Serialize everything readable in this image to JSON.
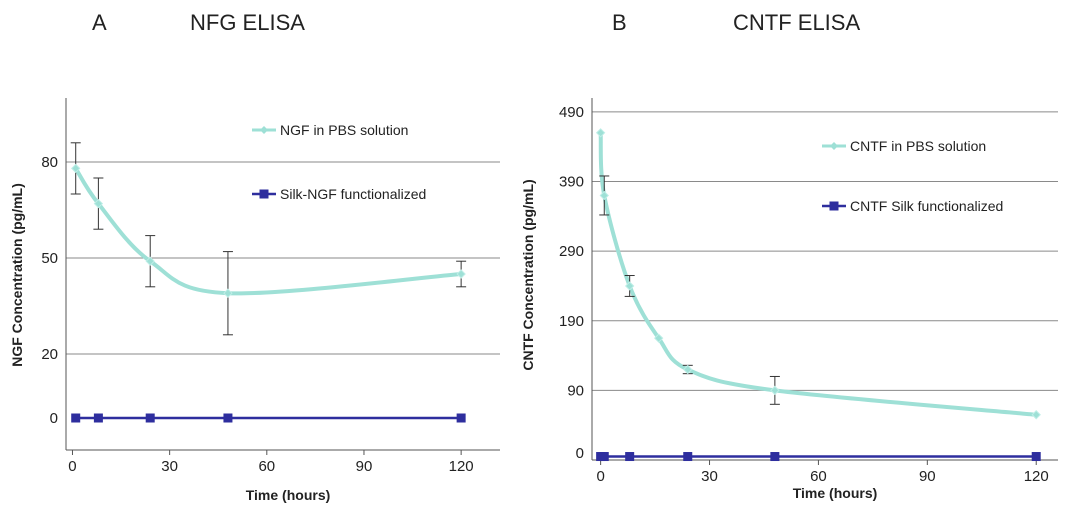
{
  "chart_data": [
    {
      "type": "line",
      "panel_label": "A",
      "title": "NFG  ELISA",
      "xlabel": "Time (hours)",
      "ylabel": "NGF Concentration (pg/mL)",
      "xlim": [
        -2,
        132
      ],
      "ylim": [
        -10,
        100
      ],
      "x_ticks": [
        0,
        30,
        60,
        90,
        120
      ],
      "y_ticks": [
        0,
        20,
        50,
        80
      ],
      "grid": "horizontal",
      "legend_placement": "right",
      "series": [
        {
          "name": "NGF in PBS solution",
          "color": "#9ee0d6",
          "marker": "diamond",
          "x": [
            1,
            8,
            24,
            48,
            120
          ],
          "y": [
            78,
            67,
            49,
            39,
            45
          ],
          "err": [
            8,
            8,
            8,
            13,
            4
          ]
        },
        {
          "name": "Silk-NGF functionalized",
          "color": "#2e2e9e",
          "marker": "square",
          "x": [
            1,
            8,
            24,
            48,
            120
          ],
          "y": [
            0,
            0,
            0,
            0,
            0
          ]
        }
      ]
    },
    {
      "type": "line",
      "panel_label": "B",
      "title": "CNTF ELISA",
      "xlabel": "Time (hours)",
      "ylabel": "CNTF Concentration (pg/mL)",
      "xlim": [
        -1,
        126
      ],
      "ylim": [
        -10,
        510
      ],
      "x_ticks": [
        0,
        30,
        60,
        90,
        120
      ],
      "y_ticks": [
        0,
        90,
        190,
        290,
        390,
        490
      ],
      "grid": "horizontal",
      "legend_placement": "right",
      "series": [
        {
          "name": "CNTF in PBS solution",
          "color": "#9ee0d6",
          "marker": "diamond",
          "x": [
            0,
            1,
            8,
            16,
            24,
            48,
            120
          ],
          "y": [
            460,
            370,
            240,
            165,
            120,
            90,
            55
          ],
          "err": [
            0,
            28,
            15,
            0,
            6,
            20,
            0
          ]
        },
        {
          "name": "CNTF Silk functionalized",
          "color": "#2e2e9e",
          "marker": "square",
          "x": [
            0,
            1,
            8,
            24,
            48,
            120
          ],
          "y": [
            -5,
            -5,
            -5,
            -5,
            -5,
            -5
          ]
        }
      ]
    }
  ]
}
